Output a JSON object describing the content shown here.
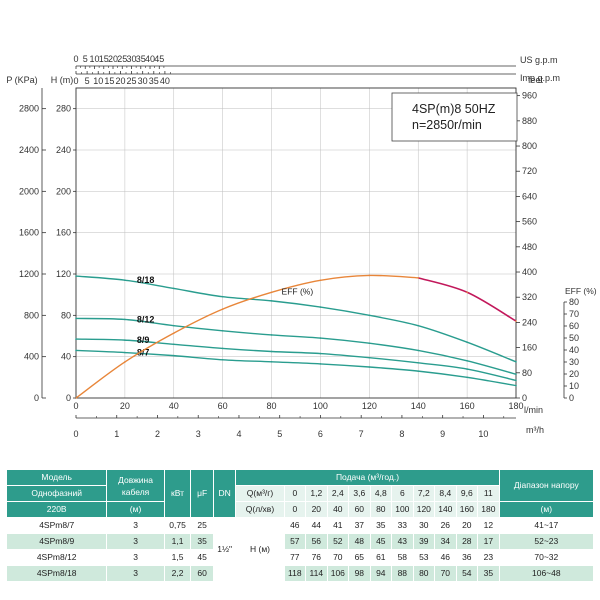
{
  "chart_data": {
    "type": "line",
    "title": "4SP(m)8  50HZ",
    "subtitle": "n=2850r/min",
    "xlabel": "l/min",
    "ylabel": "H (m)",
    "xlim": [
      0,
      180
    ],
    "ylim": [
      0,
      300
    ],
    "x_ticks": [
      0,
      20,
      40,
      60,
      80,
      100,
      120,
      140,
      160,
      180
    ],
    "y_ticks": [
      0,
      40,
      80,
      120,
      160,
      200,
      240,
      280
    ],
    "axes": {
      "pressure": {
        "label": "P (KPa)",
        "ticks": [
          "0",
          "400",
          "800",
          "1200",
          "1600",
          "2000",
          "2400",
          "2800"
        ]
      },
      "feet": {
        "label": "feet",
        "ticks": [
          "0",
          "80",
          "160",
          "240",
          "320",
          "400",
          "480",
          "560",
          "640",
          "720",
          "800",
          "880",
          "960"
        ]
      },
      "eff": {
        "label": "EFF (%)",
        "ticks": [
          "0",
          "10",
          "20",
          "30",
          "40",
          "50",
          "60",
          "70",
          "80"
        ]
      },
      "m3h": {
        "label": "m³/h",
        "ticks": [
          "0",
          "1",
          "2",
          "3",
          "4",
          "5",
          "6",
          "7",
          "8",
          "9",
          "10",
          "11"
        ]
      },
      "us_gpm": {
        "label": "US g.p.m",
        "ticks": [
          "0",
          "5",
          "10",
          "15",
          "20",
          "25",
          "30",
          "35",
          "40",
          "45"
        ]
      },
      "imp_gpm": {
        "label": "Imp g.p.m",
        "ticks": [
          "0",
          "5",
          "10",
          "15",
          "20",
          "25",
          "30",
          "35",
          "40"
        ]
      }
    },
    "series": [
      {
        "name": "8/18",
        "x": [
          0,
          20,
          40,
          60,
          80,
          100,
          120,
          140,
          160,
          180
        ],
        "y": [
          118,
          114,
          106,
          98,
          94,
          88,
          80,
          70,
          54,
          35
        ]
      },
      {
        "name": "8/12",
        "x": [
          0,
          20,
          40,
          60,
          80,
          100,
          120,
          140,
          160,
          180
        ],
        "y": [
          77,
          76,
          70,
          65,
          61,
          58,
          53,
          46,
          36,
          23
        ]
      },
      {
        "name": "8/9",
        "x": [
          0,
          20,
          40,
          60,
          80,
          100,
          120,
          140,
          160,
          180
        ],
        "y": [
          57,
          56,
          52,
          48,
          45,
          43,
          39,
          34,
          28,
          17
        ]
      },
      {
        "name": "8/7",
        "x": [
          0,
          20,
          40,
          60,
          80,
          100,
          120,
          140,
          160,
          180
        ],
        "y": [
          46,
          44,
          41,
          37,
          35,
          33,
          30,
          26,
          20,
          12
        ]
      }
    ],
    "efficiency": {
      "label": "EFF (%)",
      "x": [
        0,
        20,
        40,
        60,
        80,
        100,
        120,
        140,
        160,
        180
      ],
      "y": [
        0,
        15,
        27,
        37,
        44,
        49,
        51,
        50,
        44,
        32
      ]
    },
    "colors": {
      "head": "#2a9d8f",
      "eff": "#e8863a",
      "eff_end": "#c2185b",
      "grid": "#bfbfbf"
    }
  },
  "table": {
    "h_model": "Модель",
    "h_phase": "Однофазний",
    "h_voltage": "220В",
    "h_cable": "Довжина кабеля",
    "h_cable_unit": "(м)",
    "h_kw": "кВт",
    "h_uf": "μF",
    "h_dn": "DN",
    "h_flow": "Подача (м³/год.)",
    "h_q_m3": "Q(м³/г)",
    "h_q_l": "Q(л/хв)",
    "h_range": "Діапазон напору",
    "h_range_unit": "(м)",
    "h_head": "H (м)",
    "dn_value": "1½\"",
    "q_m3": [
      "0",
      "1,2",
      "2,4",
      "3,6",
      "4,8",
      "6",
      "7,2",
      "8,4",
      "9,6",
      "11"
    ],
    "q_l": [
      "0",
      "20",
      "40",
      "60",
      "80",
      "100",
      "120",
      "140",
      "160",
      "180"
    ],
    "rows": [
      {
        "model": "4SPm8/7",
        "cable": "3",
        "kw": "0,75",
        "uf": "25",
        "h": [
          "46",
          "44",
          "41",
          "37",
          "35",
          "33",
          "30",
          "26",
          "20",
          "12"
        ],
        "range": "41~17"
      },
      {
        "model": "4SPm8/9",
        "cable": "3",
        "kw": "1,1",
        "uf": "35",
        "h": [
          "57",
          "56",
          "52",
          "48",
          "45",
          "43",
          "39",
          "34",
          "28",
          "17"
        ],
        "range": "52~23"
      },
      {
        "model": "4SPm8/12",
        "cable": "3",
        "kw": "1,5",
        "uf": "45",
        "h": [
          "77",
          "76",
          "70",
          "65",
          "61",
          "58",
          "53",
          "46",
          "36",
          "23"
        ],
        "range": "70~32"
      },
      {
        "model": "4SPm8/18",
        "cable": "3",
        "kw": "2,2",
        "uf": "60",
        "h": [
          "118",
          "114",
          "106",
          "98",
          "94",
          "88",
          "80",
          "70",
          "54",
          "35"
        ],
        "range": "106~48"
      }
    ]
  }
}
